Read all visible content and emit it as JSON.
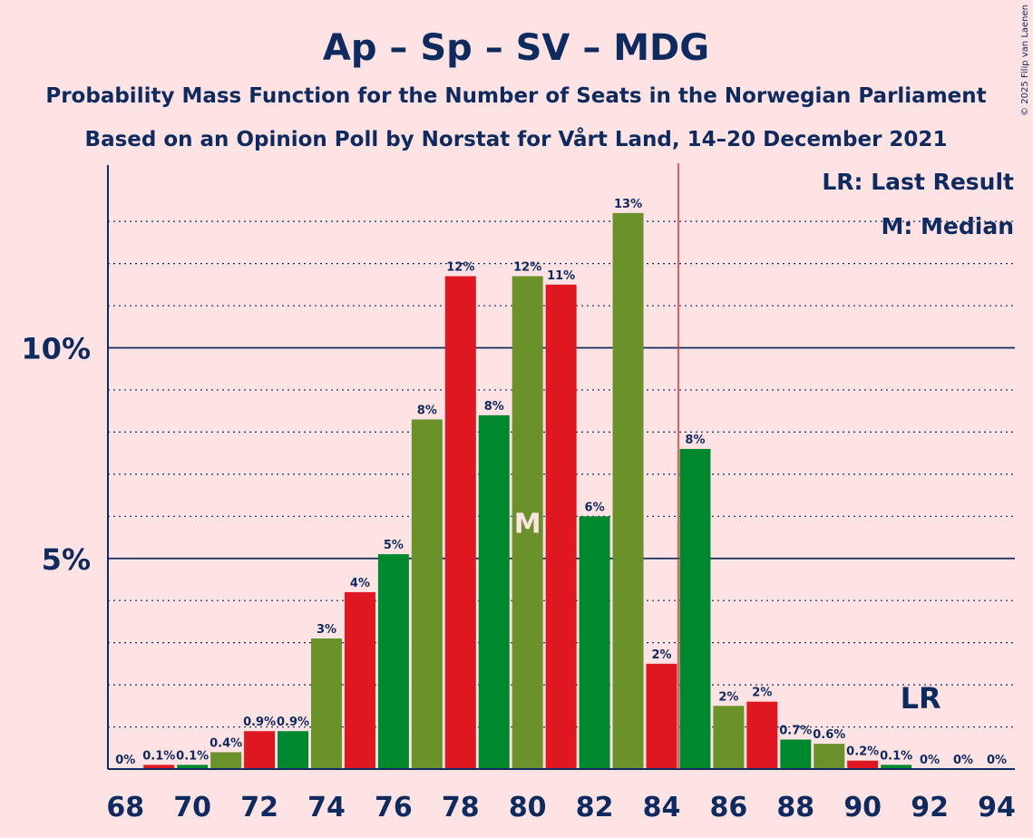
{
  "chart_data": {
    "type": "bar",
    "title": "Ap – Sp – SV – MDG",
    "subtitle": "Probability Mass Function for the Number of Seats in the Norwegian Parliament",
    "subtitle2": "Based on an Opinion Poll by Norstat for Vårt Land, 14–20 December 2021",
    "credit": "© 2025 Filip van Laenen",
    "x": [
      68,
      69,
      70,
      71,
      72,
      73,
      74,
      75,
      76,
      77,
      78,
      79,
      80,
      81,
      82,
      83,
      84,
      85,
      86,
      87,
      88,
      89,
      90,
      91,
      92,
      93,
      94
    ],
    "values": [
      0,
      0.1,
      0.1,
      0.4,
      0.9,
      0.9,
      3.1,
      4.2,
      5.1,
      8.3,
      11.7,
      8.4,
      11.7,
      11.5,
      6.0,
      13.2,
      2.5,
      7.6,
      1.5,
      1.6,
      0.7,
      0.6,
      0.2,
      0.1,
      0,
      0,
      0
    ],
    "value_labels": [
      "0%",
      "0.1%",
      "0.1%",
      "0.4%",
      "0.9%",
      "0.9%",
      "3%",
      "4%",
      "5%",
      "8%",
      "12%",
      "8%",
      "12%",
      "11%",
      "6%",
      "13%",
      "2%",
      "8%",
      "2%",
      "2%",
      "0.7%",
      "0.6%",
      "0.2%",
      "0.1%",
      "0%",
      "0%",
      "0%"
    ],
    "x_tick_labels": [
      "68",
      "70",
      "72",
      "74",
      "76",
      "78",
      "80",
      "82",
      "84",
      "86",
      "88",
      "90",
      "92",
      "94"
    ],
    "y_tick_labels": [
      "5%",
      "10%"
    ],
    "y_ticks": [
      5,
      10
    ],
    "ylim": [
      0,
      14.3
    ],
    "gridlines": "dotted every 1%, solid at 5% and 10%",
    "median_seat": 80,
    "median_marker": "M",
    "last_result_seat": 92,
    "last_result_marker": "LR",
    "majority_line_seat": 84.5,
    "legend_last_result": "LR: Last Result",
    "legend_median": "M: Median",
    "legend_position": "top-right",
    "colors": {
      "background": "#FDE3E3",
      "text": "#0E2A5E",
      "majority_line": "#E8302D",
      "bar_cycle": [
        "#6B922A",
        "#DF1721",
        "#00882F"
      ]
    }
  }
}
